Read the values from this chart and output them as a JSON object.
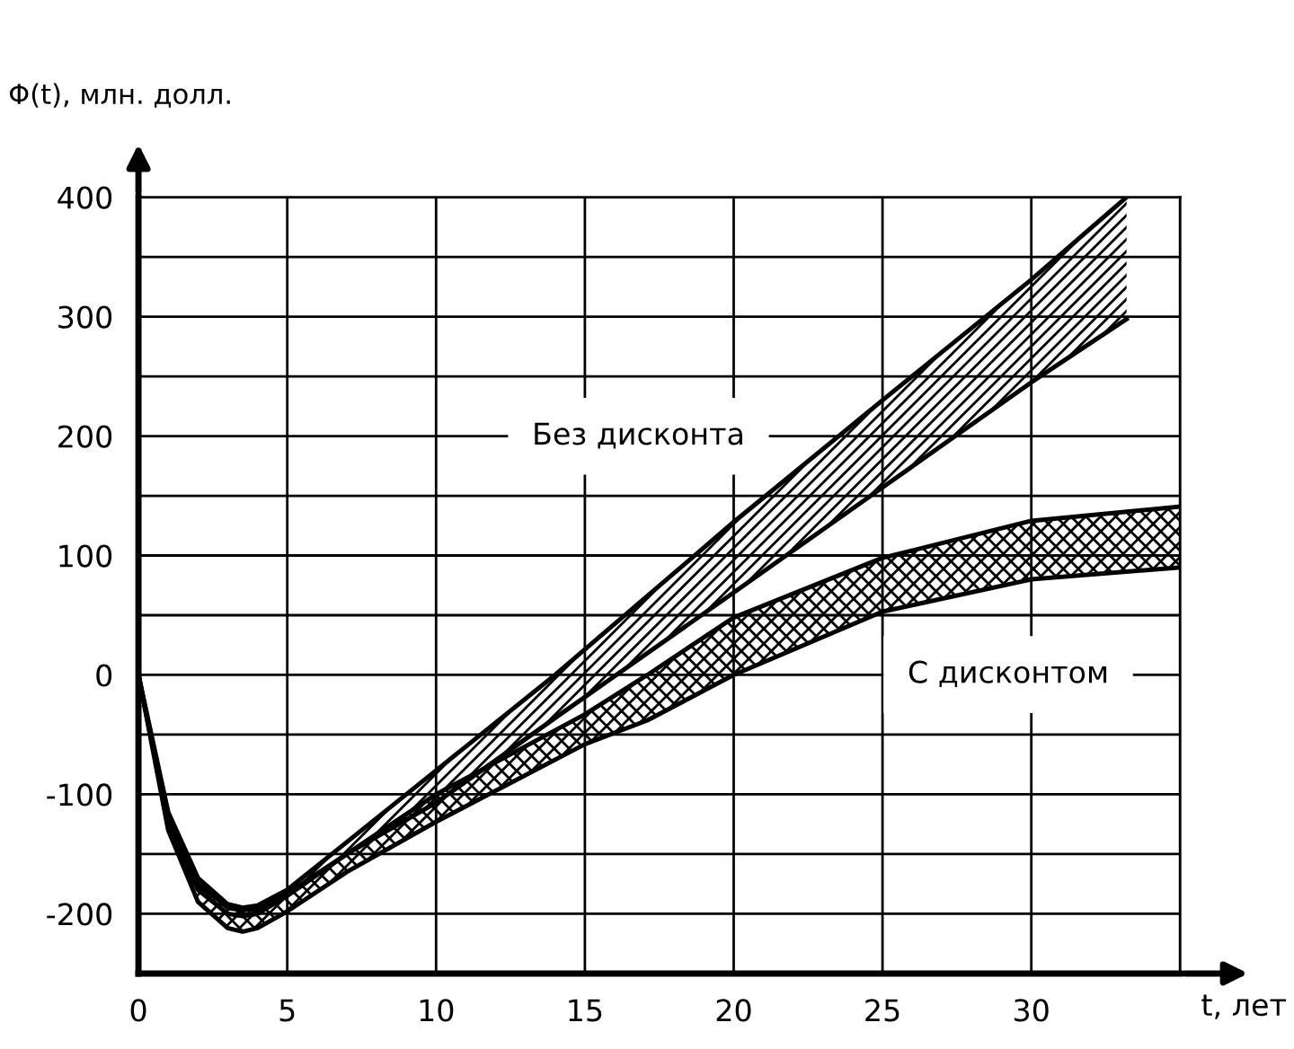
{
  "chart_data": {
    "type": "line",
    "xlabel": "t, лет",
    "ylabel": "Φ(t), млн. долл.",
    "series": [
      {
        "color": "#000000",
        "x": [
          0,
          1,
          2,
          3,
          3.5,
          4,
          5,
          7,
          10,
          14,
          20,
          25,
          30,
          33.2
        ],
        "values": [
          0,
          -115,
          -170,
          -192,
          -195,
          -193,
          -180,
          -140,
          -80,
          0,
          128,
          230,
          331,
          400
        ],
        "lower": [
          0,
          -125,
          -180,
          -200,
          -202,
          -200,
          -185,
          -150,
          -107,
          -36,
          69,
          157,
          245,
          298
        ],
        "upper": [
          0,
          -115,
          -170,
          -192,
          -195,
          -193,
          -180,
          -140,
          -80,
          0,
          128,
          230,
          331,
          400
        ]
      },
      {
        "color": "#000000",
        "x": [
          0,
          1,
          2,
          3,
          3.5,
          4,
          5,
          7,
          10,
          14,
          20,
          25,
          30,
          33.2
        ],
        "values": [
          0,
          -125,
          -180,
          -200,
          -202,
          -200,
          -185,
          -150,
          -107,
          -36,
          69,
          157,
          245,
          298
        ]
      },
      {
        "color": "#000000",
        "x": [
          0,
          1,
          2,
          3,
          3.5,
          4,
          5,
          7,
          10,
          15,
          17.1,
          20,
          25,
          30,
          35
        ],
        "values": [
          0,
          -120,
          -175,
          -195,
          -197,
          -196,
          -183,
          -150,
          -100,
          -33,
          0,
          48,
          98,
          129,
          141
        ],
        "lower": [
          0,
          -130,
          -190,
          -212,
          -215,
          -212,
          -198,
          -165,
          -123,
          -58,
          -38,
          0,
          53,
          80,
          90
        ],
        "upper": [
          0,
          -120,
          -175,
          -195,
          -197,
          -196,
          -183,
          -150,
          -100,
          -33,
          0,
          48,
          98,
          129,
          141
        ]
      },
      {
        "color": "#000000",
        "x": [
          0,
          1,
          2,
          3,
          3.5,
          4,
          5,
          7,
          10,
          15,
          17.1,
          20,
          25,
          30,
          35
        ],
        "values": [
          0,
          -130,
          -190,
          -212,
          -215,
          -212,
          -198,
          -165,
          -123,
          -58,
          -38,
          0,
          53,
          80,
          90
        ]
      }
    ],
    "annotations": [
      "Без дисконта",
      "С дисконтом"
    ],
    "xlim": [
      0,
      35
    ],
    "ylim": [
      -250,
      400
    ],
    "xticks": [
      0,
      5,
      10,
      15,
      20,
      25,
      30,
      {
        "value": 35,
        "label": null
      }
    ],
    "yticks": [
      {
        "value": -250,
        "label": null
      },
      -200,
      {
        "value": -150,
        "label": null
      },
      -100,
      {
        "value": -50,
        "label": null
      },
      0,
      {
        "value": 50,
        "label": null
      },
      100,
      {
        "value": 150,
        "label": null
      },
      200,
      {
        "value": 250,
        "label": null
      },
      300,
      {
        "value": 350,
        "label": null
      },
      400
    ],
    "grid": true,
    "marker": "none",
    "line_style": "solid"
  }
}
